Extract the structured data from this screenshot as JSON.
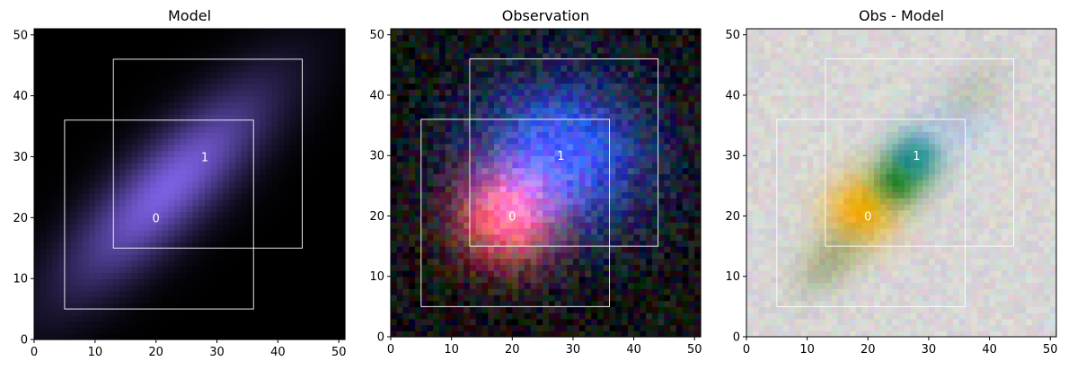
{
  "chart_data": [
    {
      "type": "image",
      "title": "Model",
      "xlim": [
        0,
        51
      ],
      "ylim": [
        0,
        51
      ],
      "xticks": [
        0,
        10,
        20,
        30,
        40,
        50
      ],
      "yticks": [
        0,
        10,
        20,
        30,
        40,
        50
      ],
      "sources": [
        {
          "label": "0",
          "center": [
            20,
            20
          ],
          "box": {
            "x0": 5,
            "x1": 36,
            "y0": 5,
            "y1": 36
          }
        },
        {
          "label": "1",
          "center": [
            28,
            30
          ],
          "box": {
            "x0": 13,
            "x1": 44,
            "y0": 15,
            "y1": 46
          }
        }
      ],
      "background_color": "#000000",
      "blobs": [
        {
          "center": [
            22,
            25
          ],
          "sigma": [
            16,
            5
          ],
          "angle_deg": 45,
          "color": "#7a5fe0",
          "intensity": 1.0
        }
      ]
    },
    {
      "type": "image",
      "title": "Observation",
      "xlim": [
        0,
        51
      ],
      "ylim": [
        0,
        51
      ],
      "xticks": [
        0,
        10,
        20,
        30,
        40,
        50
      ],
      "yticks": [
        0,
        10,
        20,
        30,
        40,
        50
      ],
      "sources": [
        {
          "label": "0",
          "center": [
            20,
            20
          ],
          "box": {
            "x0": 5,
            "x1": 36,
            "y0": 5,
            "y1": 36
          }
        },
        {
          "label": "1",
          "center": [
            28,
            30
          ],
          "box": {
            "x0": 13,
            "x1": 44,
            "y0": 15,
            "y1": 46
          }
        }
      ],
      "background_color": "#000000",
      "noise": true,
      "blobs": [
        {
          "center": [
            28,
            30
          ],
          "sigma": [
            10,
            9
          ],
          "angle_deg": 0,
          "color": "#2d55ff",
          "intensity": 1.0
        },
        {
          "center": [
            19,
            20
          ],
          "sigma": [
            6,
            6
          ],
          "angle_deg": 0,
          "color": "#ff4a3a",
          "intensity": 1.0
        }
      ]
    },
    {
      "type": "image",
      "title": "Obs - Model",
      "xlim": [
        0,
        51
      ],
      "ylim": [
        0,
        51
      ],
      "xticks": [
        0,
        10,
        20,
        30,
        40,
        50
      ],
      "yticks": [
        0,
        10,
        20,
        30,
        40,
        50
      ],
      "sources": [
        {
          "label": "0",
          "center": [
            20,
            20
          ],
          "box": {
            "x0": 5,
            "x1": 36,
            "y0": 5,
            "y1": 36
          }
        },
        {
          "label": "1",
          "center": [
            28,
            30
          ],
          "box": {
            "x0": 13,
            "x1": 44,
            "y0": 15,
            "y1": 46
          }
        }
      ],
      "background_color": "#d8d6d6",
      "noise": true,
      "blobs": [
        {
          "center": [
            19,
            21
          ],
          "sigma": [
            4,
            4
          ],
          "angle_deg": 0,
          "color": "#ffb000",
          "intensity": 1.0
        },
        {
          "center": [
            25,
            26
          ],
          "sigma": [
            3,
            3
          ],
          "angle_deg": 0,
          "color": "#1f7a10",
          "intensity": 0.9
        },
        {
          "center": [
            28,
            30
          ],
          "sigma": [
            3,
            3
          ],
          "angle_deg": 0,
          "color": "#0a8a8a",
          "intensity": 0.9
        },
        {
          "center": [
            34,
            35
          ],
          "sigma": [
            4,
            3
          ],
          "angle_deg": 0,
          "color": "#a8c8ff",
          "intensity": 0.6
        },
        {
          "center": [
            14,
            13
          ],
          "sigma": [
            5,
            3
          ],
          "angle_deg": 45,
          "color": "#7a8a40",
          "intensity": 0.5
        },
        {
          "center": [
            37,
            40
          ],
          "sigma": [
            5,
            3
          ],
          "angle_deg": 45,
          "color": "#9aa888",
          "intensity": 0.4
        }
      ]
    }
  ]
}
